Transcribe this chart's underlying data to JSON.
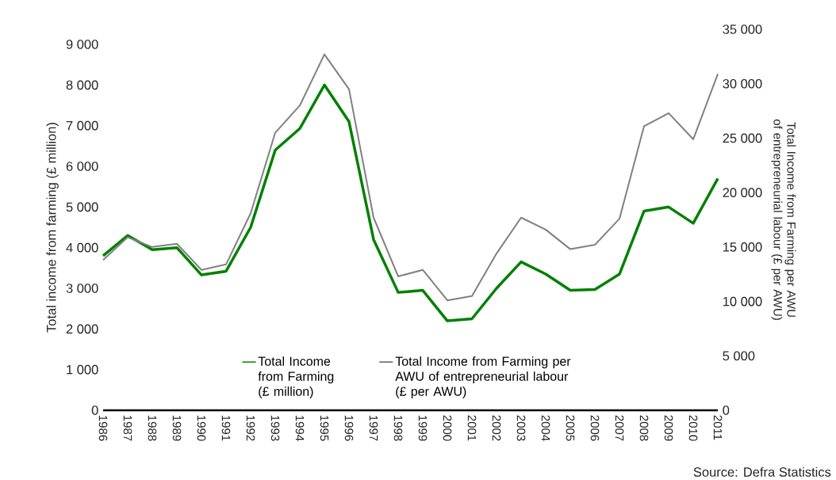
{
  "chart_data": {
    "type": "line",
    "categories": [
      "1986",
      "1987",
      "1988",
      "1989",
      "1990",
      "1991",
      "1992",
      "1993",
      "1994",
      "1995",
      "1996",
      "1997",
      "1998",
      "1999",
      "2000",
      "2001",
      "2002",
      "2003",
      "2004",
      "2005",
      "2006",
      "2007",
      "2008",
      "2009",
      "2010",
      "2011"
    ],
    "series": [
      {
        "name": "Total Income from Farming (£ million)",
        "color": "#008000",
        "values": [
          3800,
          4300,
          3950,
          4000,
          3330,
          3420,
          4500,
          6400,
          6930,
          8000,
          7100,
          4200,
          2900,
          2950,
          2200,
          2250,
          3000,
          3650,
          3350,
          2950,
          2970,
          3350,
          4900,
          5000,
          4600,
          5700
        ]
      },
      {
        "name": "Total Income from Farming per AWU of entrepreneurial labour (£ per AWU)",
        "color": "#808080",
        "axis": "y2",
        "values": [
          13800,
          15900,
          15000,
          15300,
          12900,
          13400,
          18100,
          25500,
          28000,
          32700,
          29500,
          17700,
          12300,
          12900,
          10100,
          10500,
          14400,
          17700,
          16600,
          14800,
          15200,
          17600,
          26100,
          27300,
          24900,
          30900
        ]
      }
    ],
    "ylabel": "Total income from farming (£ million)",
    "y2label": "Total Income from Farming per AWU of entrepreneurial labour (£ per AWU)",
    "ylim": [
      0,
      9000
    ],
    "yticks": [
      {
        "value": 0,
        "label": "0"
      },
      {
        "value": 1000,
        "label": "1 000"
      },
      {
        "value": 2000,
        "label": "2 000"
      },
      {
        "value": 3000,
        "label": "3 000"
      },
      {
        "value": 4000,
        "label": "4 000"
      },
      {
        "value": 5000,
        "label": "5 000"
      },
      {
        "value": 6000,
        "label": "6 000"
      },
      {
        "value": 7000,
        "label": "7 000"
      },
      {
        "value": 8000,
        "label": "8 000"
      },
      {
        "value": 9000,
        "label": "9 000"
      }
    ],
    "y2lim": [
      0,
      35000
    ],
    "y2ticks": [
      {
        "value": 0,
        "label": "0"
      },
      {
        "value": 5000,
        "label": "5 000"
      },
      {
        "value": 10000,
        "label": "10 000"
      },
      {
        "value": 15000,
        "label": "15 000"
      },
      {
        "value": 20000,
        "label": "20 000"
      },
      {
        "value": 25000,
        "label": "25 000"
      },
      {
        "value": 30000,
        "label": "30 000"
      },
      {
        "value": 35000,
        "label": "35 000"
      }
    ],
    "legend": "bottom",
    "annotations": [
      "Source: Defra Statistics"
    ]
  }
}
